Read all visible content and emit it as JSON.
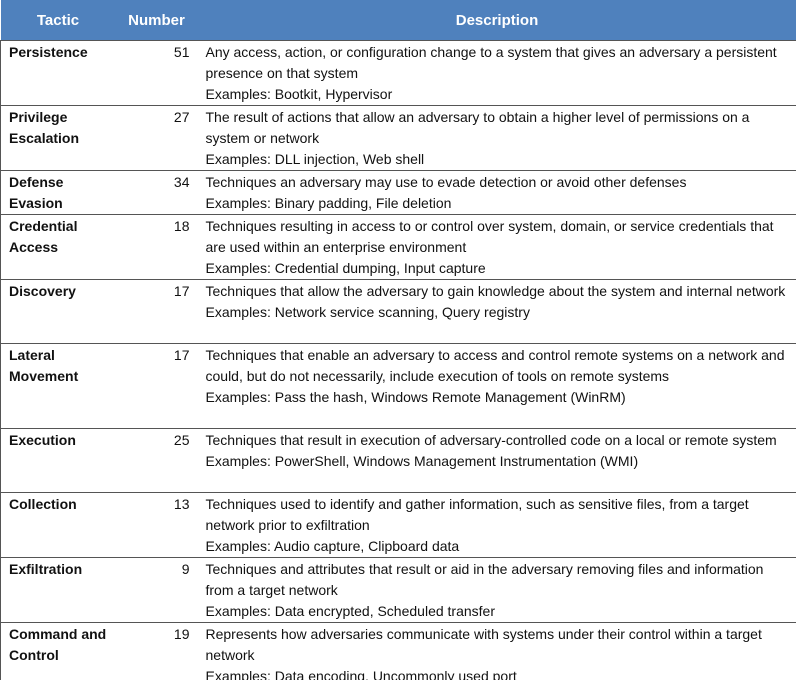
{
  "table": {
    "header": [
      "Tactic",
      "Number",
      "Description"
    ],
    "rows": [
      {
        "tactic": "Persistence",
        "number": 51,
        "description": "Any access, action, or configuration change to a system that gives an adversary a persistent presence on that system",
        "examples": "Examples: Bootkit, Hypervisor"
      },
      {
        "tactic": "Privilege Escalation",
        "number": 27,
        "description": "The result of actions that allow an adversary to obtain a higher level of permissions on a system or network",
        "examples": "Examples: DLL injection, Web shell"
      },
      {
        "tactic": "Defense Evasion",
        "number": 34,
        "description": "Techniques an adversary may use to evade detection or avoid other defenses",
        "examples": "Examples: Binary padding, File deletion"
      },
      {
        "tactic": "Credential Access",
        "number": 18,
        "description": "Techniques resulting in access to or control over system, domain, or service credentials that are used within an enterprise environment",
        "examples": "Examples: Credential dumping, Input capture"
      },
      {
        "tactic": "Discovery",
        "number": 17,
        "description": "Techniques that allow the adversary to gain knowledge about the system and internal network",
        "examples": "Examples: Network service scanning, Query registry"
      },
      {
        "tactic": "Lateral Movement",
        "number": 17,
        "description": "Techniques that enable an adversary to access and control remote systems on a network and could, but do not necessarily, include execution of tools on remote systems",
        "examples": "Examples: Pass the hash, Windows Remote Management (WinRM)"
      },
      {
        "tactic": "Execution",
        "number": 25,
        "description": "Techniques that result in execution of adversary-controlled code on a local or remote system",
        "examples": "Examples: PowerShell, Windows Management Instrumentation (WMI)"
      },
      {
        "tactic": "Collection",
        "number": 13,
        "description": "Techniques used to identify and gather information, such as sensitive files, from a target network prior to exfiltration",
        "examples": "Examples: Audio capture, Clipboard data"
      },
      {
        "tactic": "Exfiltration",
        "number": 9,
        "description": "Techniques and attributes that result or aid in the adversary removing files and information from a target network",
        "examples": "Examples: Data encrypted, Scheduled transfer"
      },
      {
        "tactic": "Command and Control",
        "number": 19,
        "description": "Represents how adversaries communicate with systems under their control within a target network",
        "examples": "Examples: Data encoding, Uncommonly used port"
      }
    ]
  }
}
